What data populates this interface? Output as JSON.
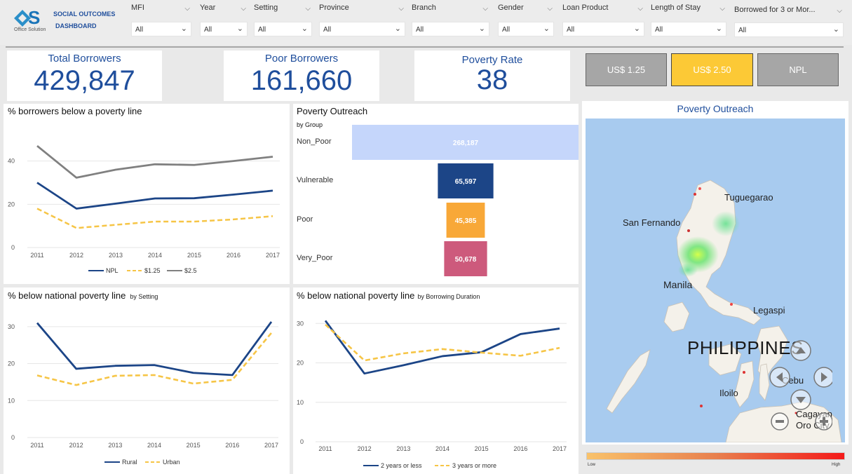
{
  "brand": {
    "line1": "SOCIAL OUTCOMES",
    "line2": "DASHBOARD",
    "logo_sub": "Office Solution"
  },
  "filters": [
    {
      "label": "MFI",
      "value": "All"
    },
    {
      "label": "Year",
      "value": "All"
    },
    {
      "label": "Setting",
      "value": "All"
    },
    {
      "label": "Province",
      "value": "All"
    },
    {
      "label": "Branch",
      "value": "All"
    },
    {
      "label": "Gender",
      "value": "All"
    },
    {
      "label": "Loan Product",
      "value": "All"
    },
    {
      "label": "Length of Stay",
      "value": "All"
    },
    {
      "label": "Borrowed for 3 or Mor...",
      "value": "All"
    }
  ],
  "kpis": {
    "total_borrowers": {
      "label": "Total Borrowers",
      "value": "429,847"
    },
    "poor_borrowers": {
      "label": "Poor Borrowers",
      "value": "161,660"
    },
    "poverty_rate": {
      "label": "Poverty Rate",
      "value": "38"
    }
  },
  "toggles": [
    {
      "label": "US$ 1.25",
      "color": "#a6a6a6",
      "selected": false
    },
    {
      "label": "US$ 2.50",
      "color": "#fcc936",
      "selected": true
    },
    {
      "label": "NPL",
      "color": "#a6a6a6",
      "selected": false
    }
  ],
  "colors": {
    "navy": "#1c4587",
    "yellow": "#f6c546",
    "gray": "#808080",
    "accent": "#1f4e9c"
  },
  "map": {
    "title": "Poverty Outreach",
    "labels": [
      "Tuguegarao",
      "San Fernando",
      "Manila",
      "Legaspi",
      "PHILIPPINES",
      "Cebu",
      "Iloilo",
      "Cagayan",
      "Oro City"
    ],
    "legend_low": "Low",
    "legend_high": "High"
  },
  "chart_data": [
    {
      "type": "line",
      "title": "% borrowers below a poverty line",
      "x": [
        2011,
        2012,
        2013,
        2014,
        2015,
        2016,
        2017
      ],
      "yticks": [
        0,
        20,
        40
      ],
      "ylim": [
        0,
        48
      ],
      "series": [
        {
          "name": "NPL",
          "values": [
            30,
            18,
            20.3,
            22.7,
            22.8,
            24.5,
            26.3
          ]
        },
        {
          "name": "$1.25",
          "values": [
            18,
            9,
            10.5,
            12,
            12,
            13,
            14.5
          ]
        },
        {
          "name": "$2.5",
          "values": [
            47,
            32.3,
            36,
            38.5,
            38.2,
            40,
            42
          ]
        }
      ],
      "legend": "bottom"
    },
    {
      "type": "bar",
      "title": "Poverty Outreach",
      "subtitle": "by Group",
      "categories": [
        "Non_Poor",
        "Vulnerable",
        "Poor",
        "Very_Poor"
      ],
      "values": [
        268187,
        65597,
        45385,
        50678
      ],
      "labels": [
        "268,187",
        "65,597",
        "45,385",
        "50,678"
      ],
      "colors": [
        "#c5d6fb",
        "#1c4587",
        "#f8a838",
        "#cd5a7c"
      ]
    },
    {
      "type": "line",
      "title": "% below national poverty line",
      "subtitle": "by Setting",
      "x": [
        2011,
        2012,
        2013,
        2014,
        2015,
        2016,
        2017
      ],
      "yticks": [
        0,
        10,
        20,
        30
      ],
      "ylim": [
        0,
        33
      ],
      "series": [
        {
          "name": "Rural",
          "values": [
            31,
            18.6,
            19.4,
            19.6,
            17.5,
            16.9,
            31.3
          ]
        },
        {
          "name": "Urban",
          "values": [
            16.8,
            14.2,
            16.7,
            16.9,
            14.6,
            15.6,
            28.3
          ]
        }
      ],
      "legend": "bottom"
    },
    {
      "type": "line",
      "title": "% below national poverty line",
      "subtitle": "by Borrowing Duration",
      "x": [
        2011,
        2012,
        2013,
        2014,
        2015,
        2016,
        2017
      ],
      "yticks": [
        0,
        10,
        20,
        30
      ],
      "ylim": [
        0,
        32
      ],
      "series": [
        {
          "name": "2 years or less",
          "values": [
            30.7,
            17.3,
            19.4,
            21.7,
            22.7,
            27.3,
            28.7
          ]
        },
        {
          "name": "3 years or more",
          "values": [
            29.7,
            20.6,
            22.4,
            23.5,
            22.6,
            21.8,
            23.8
          ]
        }
      ],
      "legend": "bottom"
    }
  ]
}
